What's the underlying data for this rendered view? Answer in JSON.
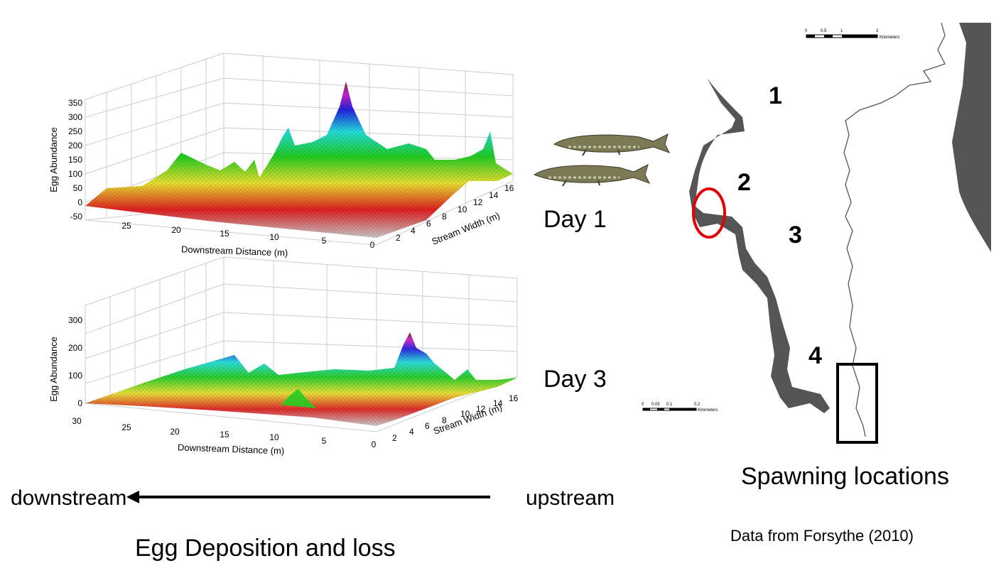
{
  "chart_data": [
    {
      "type": "surface",
      "panel_label": "Day 1",
      "zlabel": "Egg Abundance",
      "xlabel": "Downstream Distance (m)",
      "ylabel": "Stream Width (m)",
      "z_ticks": [
        "350",
        "300",
        "250",
        "200",
        "150",
        "100",
        "50",
        "0",
        "-50"
      ],
      "x_ticks": [
        "25",
        "20",
        "15",
        "10",
        "5",
        "0"
      ],
      "y_ticks": [
        "2",
        "4",
        "6",
        "8",
        "10",
        "12",
        "14",
        "16"
      ],
      "zlim": [
        -50,
        350
      ],
      "peaks": [
        {
          "x": 13,
          "y": 10,
          "z": 330
        },
        {
          "x": 20,
          "y": 9,
          "z": 170
        },
        {
          "x": 9,
          "y": 12,
          "z": 130
        },
        {
          "x": 6,
          "y": 14,
          "z": 110
        },
        {
          "x": 1,
          "y": 15,
          "z": 140
        }
      ]
    },
    {
      "type": "surface",
      "panel_label": "Day 3",
      "zlabel": "Egg Abundance",
      "xlabel": "Downstream Distance (m)",
      "ylabel": "Stream Width (m)",
      "z_ticks": [
        "300",
        "200",
        "100",
        "0"
      ],
      "x_ticks": [
        "30",
        "25",
        "20",
        "15",
        "10",
        "5",
        "0"
      ],
      "y_ticks": [
        "2",
        "4",
        "6",
        "8",
        "10",
        "12",
        "14",
        "16"
      ],
      "zlim": [
        0,
        330
      ],
      "peaks": [
        {
          "x": 5,
          "y": 13,
          "z": 200
        },
        {
          "x": 15,
          "y": 11,
          "z": 60
        },
        {
          "x": 11,
          "y": 4,
          "z": 60
        }
      ]
    }
  ],
  "labels": {
    "day1": "Day 1",
    "day3": "Day 3",
    "downstream": "downstream",
    "upstream": "upstream",
    "caption": "Egg Deposition and loss",
    "spawning": "Spawning locations",
    "source": "Data from Forsythe (2010)"
  },
  "map": {
    "sites": [
      "1",
      "2",
      "3",
      "4"
    ],
    "scale_large": {
      "ticks": [
        "0",
        "0.5",
        "1",
        "2"
      ],
      "unit": "Kilometers"
    },
    "scale_small": {
      "ticks": [
        "0",
        "0.05",
        "0.1",
        "0.2"
      ],
      "unit": "Kilometers"
    }
  },
  "colors": {
    "river": "#555555",
    "highlight_circle": "#e00000",
    "arrow": "#000000"
  }
}
